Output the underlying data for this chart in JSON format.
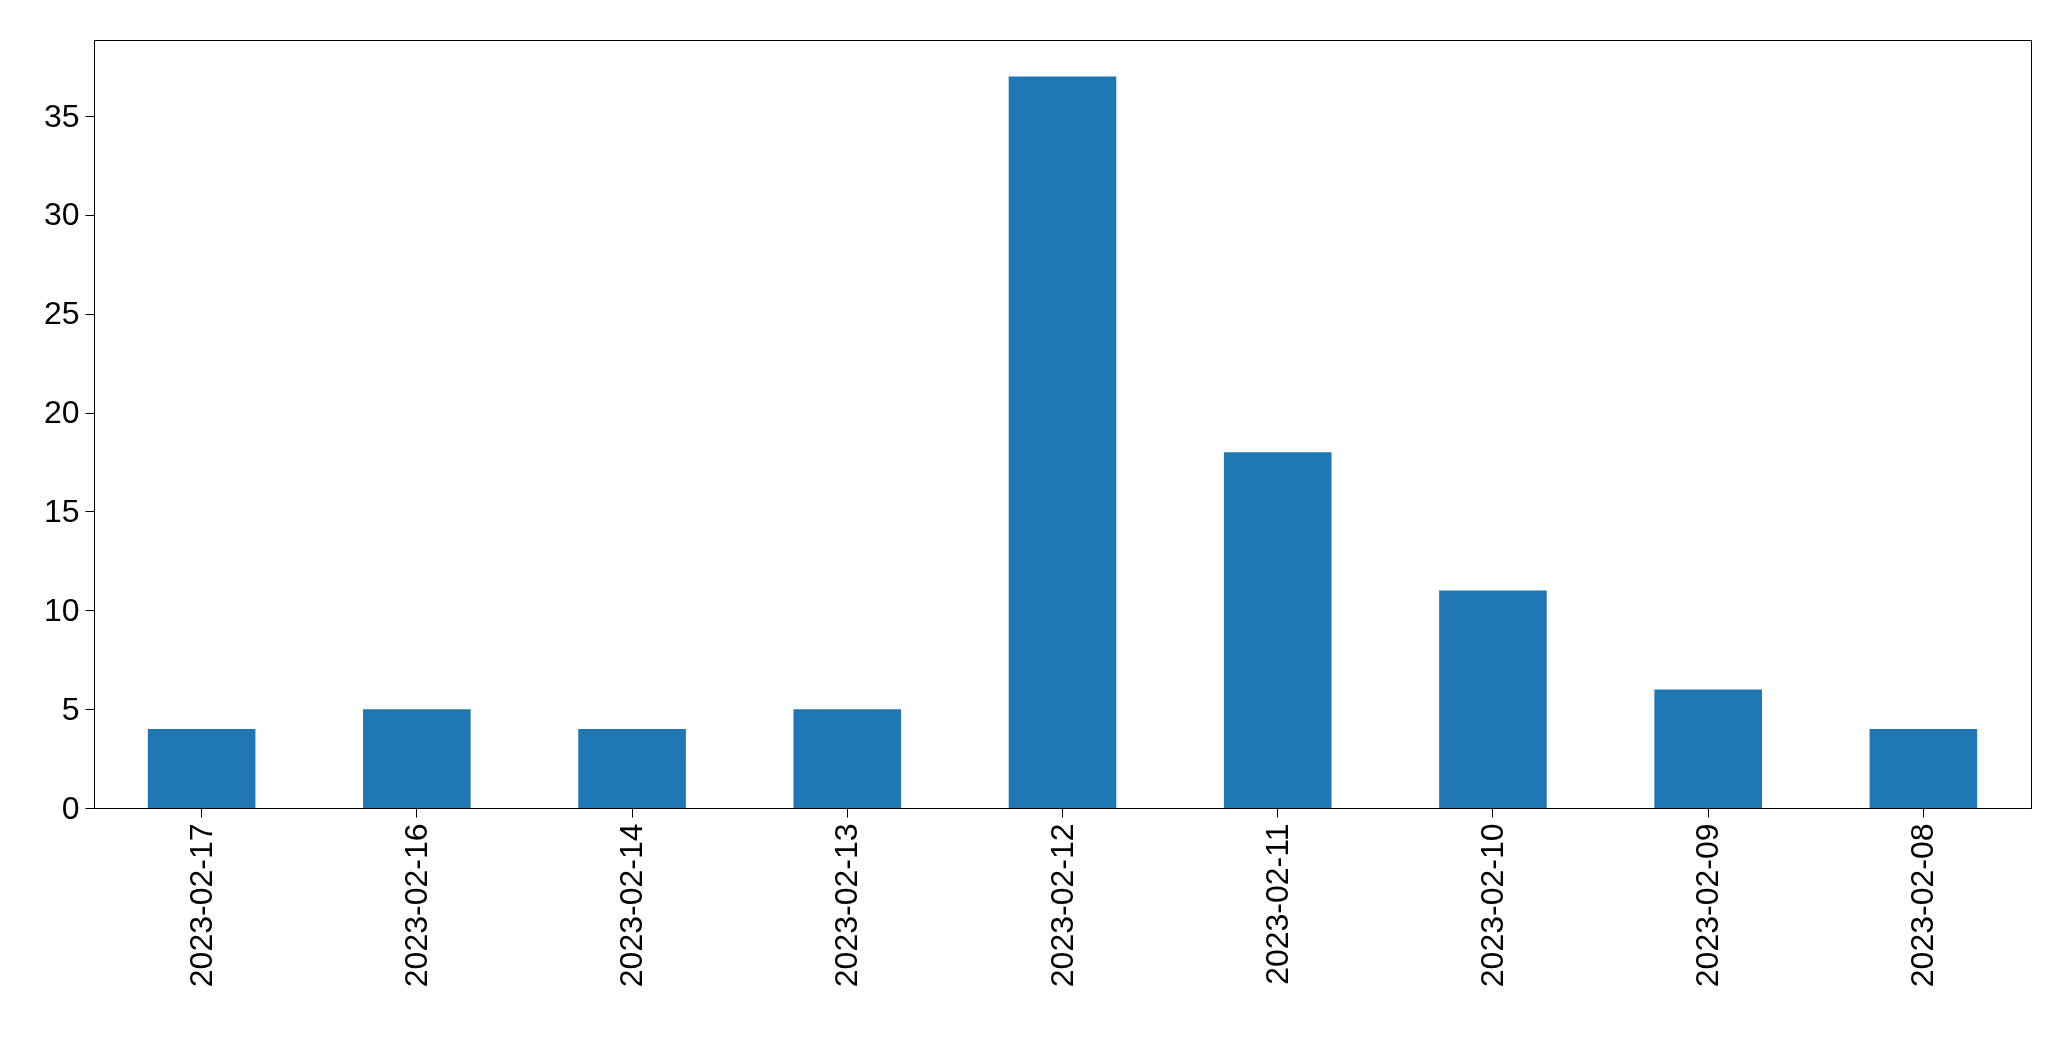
{
  "chart_data": {
    "type": "bar",
    "categories": [
      "2023-02-17",
      "2023-02-16",
      "2023-02-14",
      "2023-02-13",
      "2023-02-12",
      "2023-02-11",
      "2023-02-10",
      "2023-02-09",
      "2023-02-08"
    ],
    "values": [
      4,
      5,
      4,
      5,
      37,
      18,
      11,
      6,
      4
    ],
    "color": "#1f77b4",
    "ylim": [
      0,
      38.85
    ],
    "yticks": [
      0,
      5,
      10,
      15,
      20,
      25,
      30,
      35
    ],
    "grid": false
  }
}
